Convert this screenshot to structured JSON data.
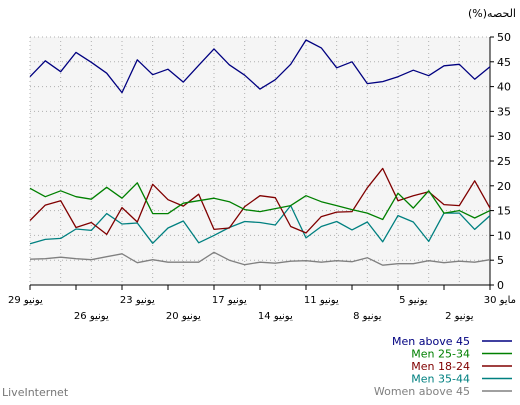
{
  "chart_data": {
    "type": "line",
    "y_unit_label": "(%)الحصه",
    "ylim": [
      0,
      50
    ],
    "yticks": [
      0,
      5,
      10,
      15,
      20,
      25,
      30,
      35,
      40,
      45,
      50
    ],
    "grid": true,
    "legend_position": "bottom-right",
    "x_ticks_top": [
      "29 يونيو",
      "23 يونيو",
      "17 يونيو",
      "11 يونيو",
      "5 يونيو",
      "30 مايو"
    ],
    "x_ticks_bottom": [
      "26 يونيو",
      "20 يونيو",
      "14 يونيو",
      "8 يونيو",
      "2 يونيو"
    ],
    "series": [
      {
        "name": "Men above 45",
        "color": "#000080",
        "values": [
          44,
          41.5,
          44.5,
          44.2,
          42.2,
          43.3,
          42,
          41,
          40.6,
          45,
          43.8,
          47.8,
          49.4,
          44.5,
          41.4,
          39.5,
          42.3,
          44.4,
          47.6,
          44.3,
          40.9,
          43.5,
          42.4,
          45.4,
          38.8,
          42.7,
          44.9,
          46.9,
          43,
          45.2,
          42
        ]
      },
      {
        "name": "Men 25-34",
        "color": "#008000",
        "values": [
          15,
          13.5,
          15,
          14.5,
          19,
          15.5,
          18.5,
          13.2,
          14.5,
          15.2,
          16,
          16.8,
          18,
          16,
          15.4,
          14.8,
          15.2,
          16.8,
          17.5,
          17,
          16.5,
          14.4,
          14.4,
          20.6,
          17.5,
          19.7,
          17.3,
          17.8,
          19,
          17.8,
          19.5
        ]
      },
      {
        "name": "Men 18-24",
        "color": "#800000",
        "values": [
          15.5,
          21,
          16,
          16.2,
          18.8,
          18,
          17,
          23.5,
          19.6,
          14.8,
          14.7,
          13.8,
          10.5,
          11.8,
          17.6,
          18,
          15.8,
          11.5,
          11.2,
          18.3,
          15.9,
          17.2,
          20.3,
          12.7,
          15.6,
          10.2,
          12.6,
          11.6,
          17,
          16.1,
          13
        ]
      },
      {
        "name": "Men 35-44",
        "color": "#008080",
        "values": [
          14,
          11.2,
          14.5,
          14.5,
          8.8,
          12.7,
          14,
          8.7,
          12.7,
          11.1,
          12.8,
          11.8,
          9.5,
          16,
          12.1,
          12.6,
          12.8,
          11.6,
          10,
          8.5,
          12.9,
          11.5,
          8.4,
          12.5,
          12.3,
          14.4,
          11,
          11.3,
          9.4,
          9.2,
          8.3
        ]
      },
      {
        "name": "Women above 45",
        "color": "#808080",
        "values": [
          5.1,
          4.6,
          4.8,
          4.5,
          4.9,
          4.3,
          4.3,
          4,
          5.5,
          4.7,
          4.9,
          4.6,
          4.9,
          4.8,
          4.4,
          4.6,
          4.1,
          5,
          6.6,
          4.6,
          4.6,
          4.6,
          5.1,
          4.5,
          6.3,
          5.7,
          5.1,
          5.3,
          5.6,
          5.3,
          5.2
        ]
      }
    ]
  },
  "footer": {
    "brand": "LiveInternet"
  }
}
